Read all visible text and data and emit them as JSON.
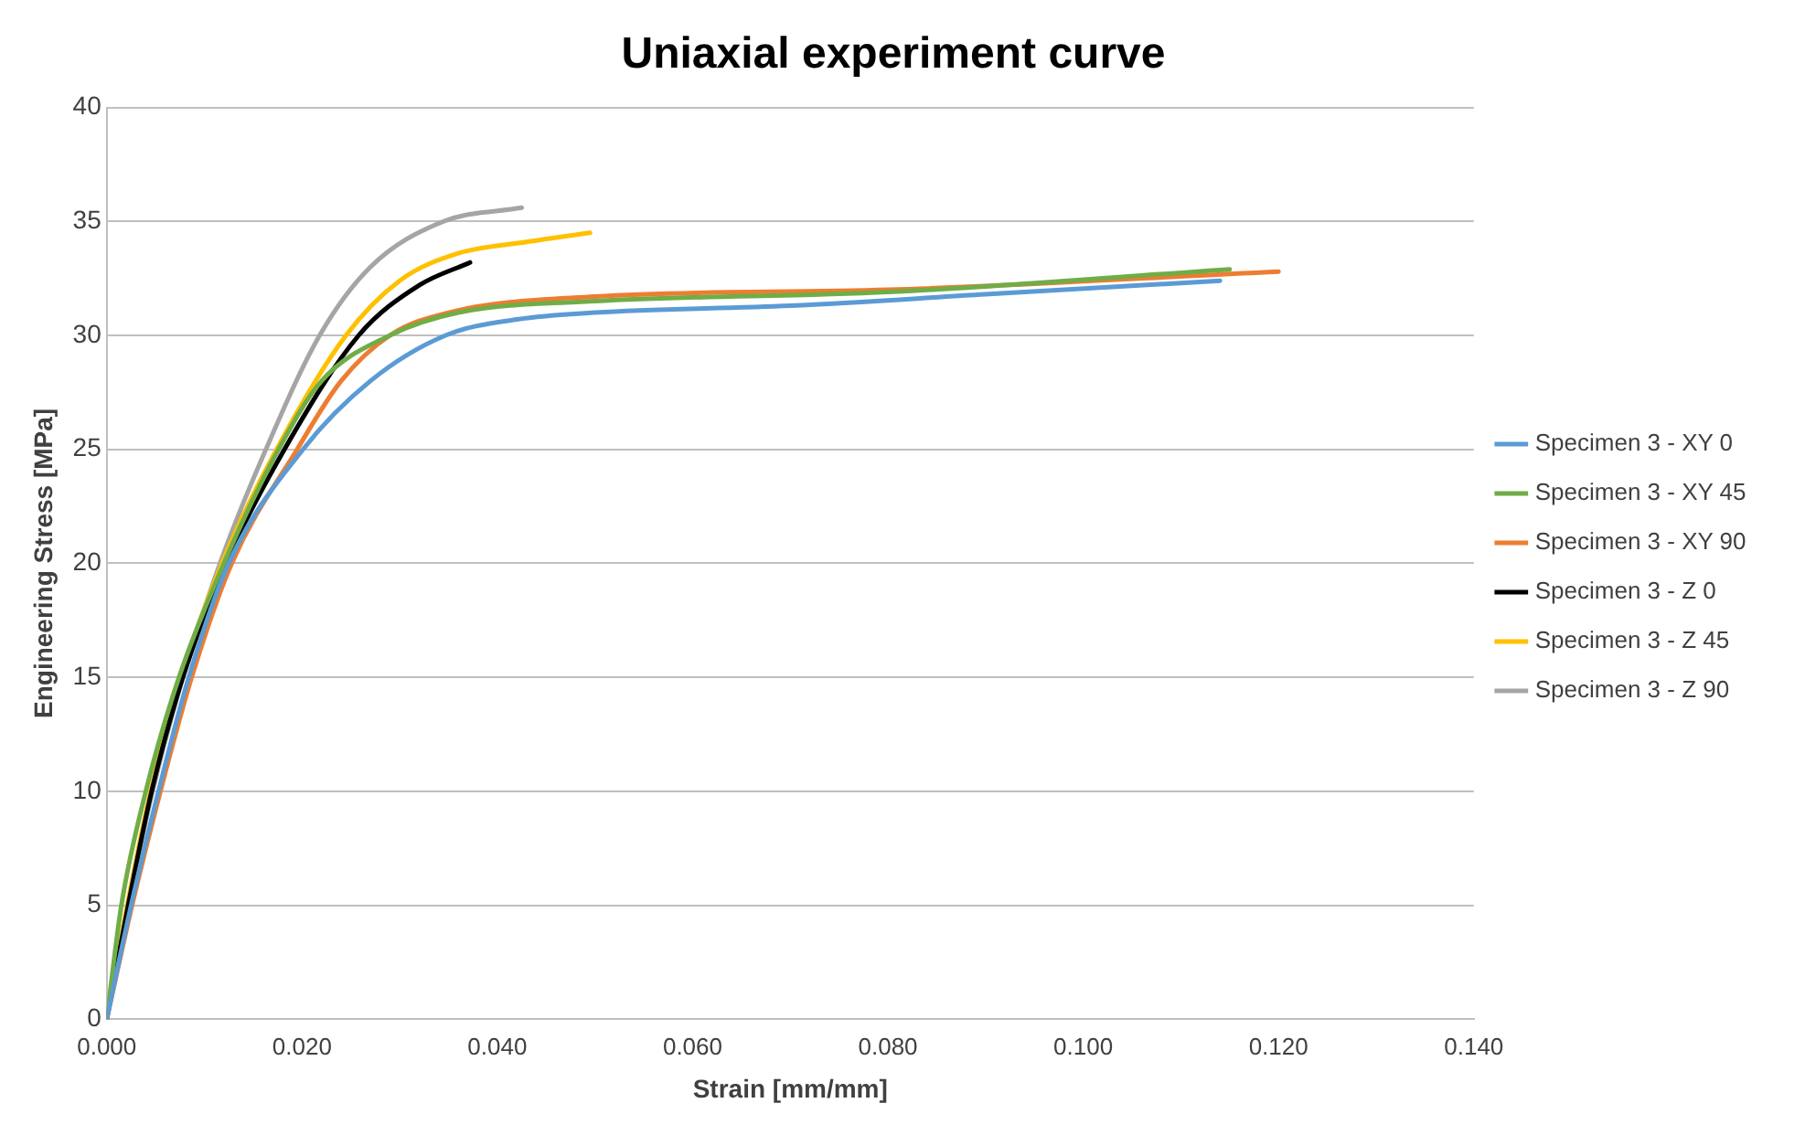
{
  "chart_data": {
    "type": "line",
    "title": "Uniaxial experiment curve",
    "xlabel": "Strain [mm/mm]",
    "ylabel": "Engineering Stress [MPa]",
    "xlim": [
      0,
      0.14
    ],
    "xticks": [
      {
        "value": 0,
        "label": "0.000"
      },
      {
        "value": 0.02,
        "label": "0.020"
      },
      {
        "value": 0.04,
        "label": "0.040"
      },
      {
        "value": 0.06,
        "label": "0.060"
      },
      {
        "value": 0.08,
        "label": "0.080"
      },
      {
        "value": 0.1,
        "label": "0.100"
      },
      {
        "value": 0.12,
        "label": "0.120"
      },
      {
        "value": 0.14,
        "label": "0.140"
      }
    ],
    "ylim": [
      0,
      40
    ],
    "yticks": [
      0,
      5,
      10,
      15,
      20,
      25,
      30,
      35,
      40
    ],
    "grid": "y",
    "legend": "right",
    "marker": "none",
    "line_style": "solid",
    "series": [
      {
        "name": "Specimen 3 - XY 0",
        "color": "#5b9bd5",
        "x": [
          0,
          0.0025,
          0.0053,
          0.0084,
          0.0125,
          0.0201,
          0.027,
          0.0347,
          0.042,
          0.05,
          0.07,
          0.09,
          0.114
        ],
        "values": [
          0,
          5,
          10,
          15,
          20,
          25,
          28,
          30,
          30.7,
          31,
          31.3,
          31.8,
          32.4
        ]
      },
      {
        "name": "Specimen 3 - XY 45",
        "color": "#70ad47",
        "x": [
          0,
          0.0015,
          0.004,
          0.0074,
          0.012,
          0.0176,
          0.022,
          0.029,
          0.036,
          0.05,
          0.08,
          0.115
        ],
        "values": [
          0,
          5,
          10,
          15,
          20,
          25,
          28,
          30,
          31,
          31.5,
          31.9,
          32.9
        ]
      },
      {
        "name": "Specimen 3 - XY 90",
        "color": "#ed7d31",
        "x": [
          0,
          0.0026,
          0.0055,
          0.0087,
          0.0128,
          0.0195,
          0.024,
          0.029,
          0.035,
          0.05,
          0.08,
          0.12
        ],
        "values": [
          0,
          5,
          10,
          15,
          20,
          25,
          28,
          30,
          31,
          31.7,
          32,
          32.8
        ]
      },
      {
        "name": "Specimen 3 - Z 0",
        "color": "#000000",
        "x": [
          0,
          0.0022,
          0.0046,
          0.0078,
          0.0122,
          0.0182,
          0.0258,
          0.032,
          0.0372
        ],
        "values": [
          0,
          5,
          10,
          15,
          20,
          25,
          30,
          32.2,
          33.2
        ]
      },
      {
        "name": "Specimen 3 - Z 45",
        "color": "#ffc000",
        "x": [
          0,
          0.0021,
          0.0045,
          0.0076,
          0.0118,
          0.0174,
          0.0245,
          0.03,
          0.036,
          0.043,
          0.0495
        ],
        "values": [
          0,
          5,
          10,
          15,
          20,
          25,
          30,
          32.4,
          33.6,
          34.1,
          34.5
        ]
      },
      {
        "name": "Specimen 3 - Z 90",
        "color": "#a5a5a5",
        "x": [
          0,
          0.0022,
          0.0047,
          0.0078,
          0.0116,
          0.0163,
          0.0218,
          0.027,
          0.0345,
          0.0425
        ],
        "values": [
          0,
          5,
          10,
          15,
          20,
          25,
          30,
          33,
          35,
          35.6
        ]
      }
    ]
  }
}
